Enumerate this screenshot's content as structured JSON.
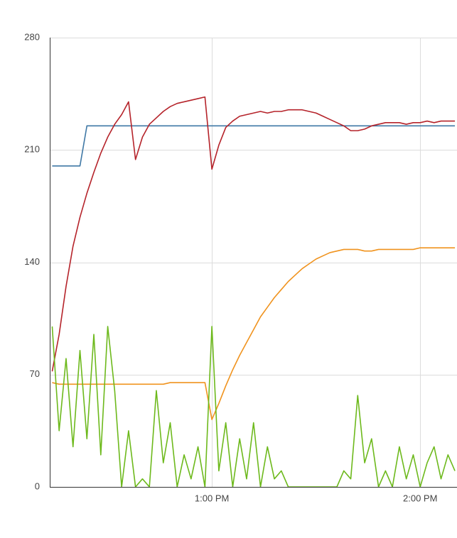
{
  "chart_data": {
    "type": "line",
    "x": [
      734,
      736,
      738,
      740,
      742,
      744,
      746,
      748,
      750,
      752,
      754,
      756,
      758,
      760,
      762,
      764,
      766,
      768,
      770,
      772,
      774,
      776,
      778,
      780,
      782,
      784,
      786,
      788,
      790,
      792,
      794,
      796,
      798,
      800,
      802,
      804,
      806,
      808,
      810,
      812,
      814,
      816,
      818,
      820,
      822,
      824,
      826,
      828,
      830,
      832,
      834,
      836,
      838,
      840,
      842,
      844,
      846,
      848,
      850
    ],
    "xlim": [
      733.3,
      850.6
    ],
    "xticks": [
      {
        "value": 780,
        "label": "1:00 PM"
      },
      {
        "value": 840,
        "label": "2:00 PM"
      }
    ],
    "ylim": [
      0,
      280
    ],
    "yticks": [
      0,
      70,
      140,
      210,
      280
    ],
    "grid": true,
    "series": [
      {
        "color": "#3f78a5",
        "values": [
          200,
          200,
          200,
          200,
          200,
          225,
          225,
          225,
          225,
          225,
          225,
          225,
          225,
          225,
          225,
          225,
          225,
          225,
          225,
          225,
          225,
          225,
          225,
          225,
          225,
          225,
          225,
          225,
          225,
          225,
          225,
          225,
          225,
          225,
          225,
          225,
          225,
          225,
          225,
          225,
          225,
          225,
          225,
          225,
          225,
          225,
          225,
          225,
          225,
          225,
          225,
          225,
          225,
          225,
          225,
          225,
          225,
          225,
          225
        ]
      },
      {
        "color": "#b5232a",
        "values": [
          72,
          95,
          125,
          150,
          168,
          183,
          196,
          208,
          218,
          226,
          232,
          240,
          204,
          218,
          226,
          230,
          234,
          237,
          239,
          240,
          241,
          242,
          243,
          198,
          213,
          224,
          228,
          231,
          232,
          233,
          234,
          233,
          234,
          234,
          235,
          235,
          235,
          234,
          233,
          231,
          229,
          227,
          225,
          222,
          222,
          223,
          225,
          226,
          227,
          227,
          227,
          226,
          227,
          227,
          228,
          227,
          228,
          228,
          228
        ]
      },
      {
        "color": "#f0931e",
        "values": [
          65,
          64,
          64,
          64,
          64,
          64,
          64,
          64,
          64,
          64,
          64,
          64,
          64,
          64,
          64,
          64,
          64,
          65,
          65,
          65,
          65,
          65,
          65,
          42,
          52,
          63,
          73,
          82,
          90,
          98,
          106,
          112,
          118,
          123,
          128,
          132,
          136,
          139,
          142,
          144,
          146,
          147,
          148,
          148,
          148,
          147,
          147,
          148,
          148,
          148,
          148,
          148,
          148,
          149,
          149,
          149,
          149,
          149,
          149
        ]
      },
      {
        "color": "#6db91c",
        "values": [
          100,
          35,
          80,
          25,
          85,
          30,
          95,
          20,
          100,
          60,
          0,
          35,
          0,
          5,
          0,
          60,
          15,
          40,
          0,
          20,
          5,
          25,
          0,
          100,
          10,
          40,
          0,
          30,
          5,
          40,
          0,
          25,
          5,
          10,
          0,
          0,
          0,
          0,
          0,
          0,
          0,
          0,
          10,
          5,
          57,
          15,
          30,
          0,
          10,
          0,
          25,
          5,
          20,
          0,
          15,
          25,
          5,
          20,
          10
        ]
      }
    ]
  }
}
